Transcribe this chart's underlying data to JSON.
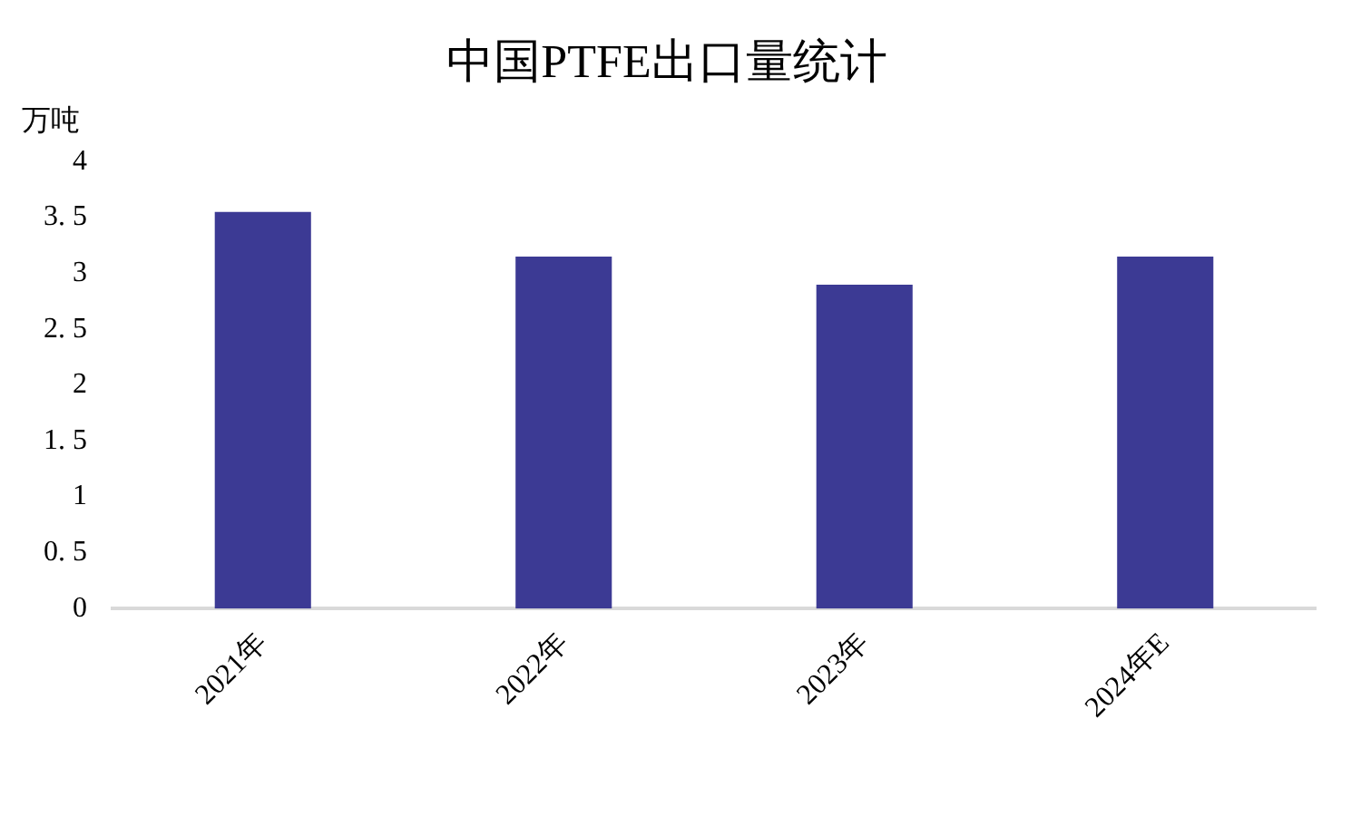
{
  "chart_data": {
    "type": "bar",
    "title": "中国PTFE出口量统计",
    "ylabel": "万吨",
    "categories": [
      "2021年",
      "2022年",
      "2023年",
      "2024年E"
    ],
    "values": [
      3.55,
      3.15,
      2.9,
      3.15
    ],
    "color": "#3c3a94",
    "ylim": [
      0,
      4
    ],
    "yticks": [
      {
        "value": 0,
        "label": "0"
      },
      {
        "value": 0.5,
        "label": "0. 5"
      },
      {
        "value": 1,
        "label": "1"
      },
      {
        "value": 1.5,
        "label": "1. 5"
      },
      {
        "value": 2,
        "label": "2"
      },
      {
        "value": 2.5,
        "label": "2. 5"
      },
      {
        "value": 3,
        "label": "3"
      },
      {
        "value": 3.5,
        "label": "3. 5"
      },
      {
        "value": 4,
        "label": "4"
      }
    ],
    "grid": false,
    "legend": false
  }
}
